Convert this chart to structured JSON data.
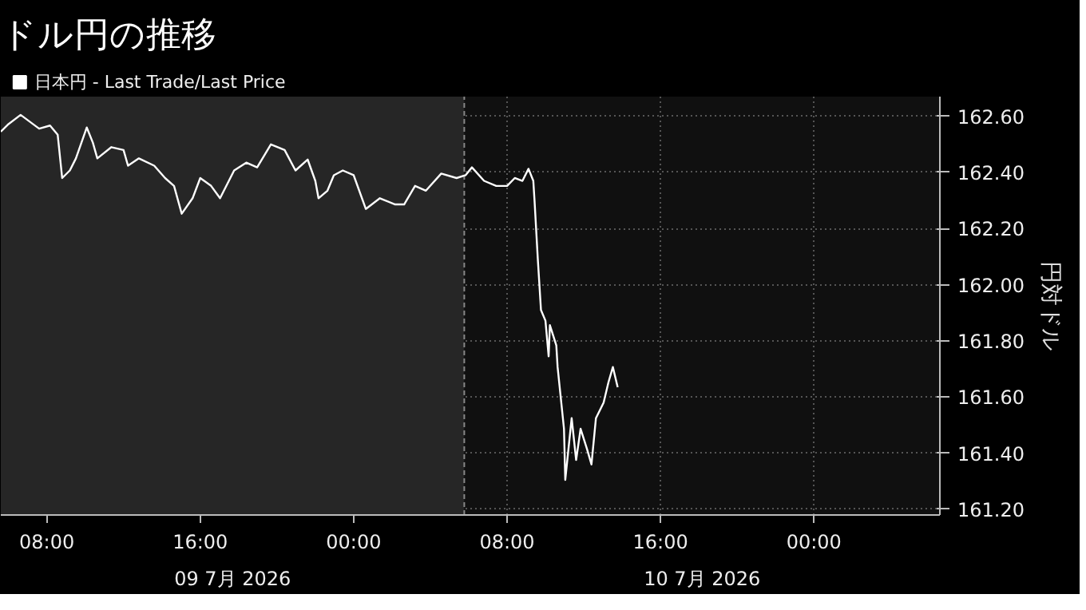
{
  "chart_data": {
    "type": "line",
    "title": "ドル円の推移",
    "ylabel": "円対ドル",
    "legend": "top left",
    "grid": true,
    "line_style": "solid",
    "marker": "none",
    "xlim": [
      "2026-07-09T05:36",
      "2026-07-11T06:34"
    ],
    "xticks": [
      {
        "value": "2026-07-09T08:00",
        "label": "08:00"
      },
      {
        "value": "2026-07-09T16:00",
        "label": "16:00"
      },
      {
        "value": "2026-07-10T00:00",
        "label": "00:00"
      },
      {
        "value": "2026-07-10T08:00",
        "label": "08:00"
      },
      {
        "value": "2026-07-10T16:00",
        "label": "16:00"
      },
      {
        "value": "2026-07-11T00:00",
        "label": "00:00"
      }
    ],
    "ylim": [
      161.18,
      162.67
    ],
    "yticks": [
      {
        "value": 161.2,
        "label": "161.20"
      },
      {
        "value": 161.4,
        "label": "161.40"
      },
      {
        "value": 161.6,
        "label": "161.60"
      },
      {
        "value": 161.8,
        "label": "161.80"
      },
      {
        "value": 162.0,
        "label": "162.00"
      },
      {
        "value": 162.2,
        "label": "162.20"
      },
      {
        "value": 162.4,
        "label": "162.40"
      },
      {
        "value": 162.6,
        "label": "162.60"
      }
    ],
    "bands": [
      {
        "axis": "x",
        "from": "2026-07-09T05:36",
        "to": "2026-07-10T05:46",
        "color": "#262626"
      }
    ],
    "ref_lines": [
      {
        "axis": "x",
        "value": "2026-07-10T05:46",
        "color": "#888888",
        "line_style": "dashed"
      }
    ],
    "annotations": [
      "09 7月 2026",
      "10 7月 2026"
    ],
    "series": [
      {
        "name": "日本円 - Last Trade/Last Price",
        "color": "#ffffff",
        "x": [
          "2026-07-09T05:36",
          "2026-07-09T06:00",
          "2026-07-09T06:38",
          "2026-07-09T07:36",
          "2026-07-09T08:10",
          "2026-07-09T08:34",
          "2026-07-09T08:48",
          "2026-07-09T09:12",
          "2026-07-09T09:31",
          "2026-07-09T10:05",
          "2026-07-09T10:24",
          "2026-07-09T10:38",
          "2026-07-09T11:22",
          "2026-07-09T12:00",
          "2026-07-09T12:14",
          "2026-07-09T12:48",
          "2026-07-09T13:36",
          "2026-07-09T14:10",
          "2026-07-09T14:38",
          "2026-07-09T15:02",
          "2026-07-09T15:36",
          "2026-07-09T16:00",
          "2026-07-09T16:34",
          "2026-07-09T17:02",
          "2026-07-09T17:46",
          "2026-07-09T18:24",
          "2026-07-09T18:58",
          "2026-07-09T19:41",
          "2026-07-09T20:24",
          "2026-07-09T20:58",
          "2026-07-09T21:36",
          "2026-07-09T22:00",
          "2026-07-09T22:10",
          "2026-07-09T22:38",
          "2026-07-09T22:58",
          "2026-07-09T23:26",
          "2026-07-10T00:00",
          "2026-07-10T00:38",
          "2026-07-10T01:22",
          "2026-07-10T02:10",
          "2026-07-10T02:38",
          "2026-07-10T03:12",
          "2026-07-10T03:46",
          "2026-07-10T04:34",
          "2026-07-10T05:22",
          "2026-07-10T05:50",
          "2026-07-10T06:10",
          "2026-07-10T06:48",
          "2026-07-10T07:26",
          "2026-07-10T08:00",
          "2026-07-10T08:24",
          "2026-07-10T08:48",
          "2026-07-10T09:07",
          "2026-07-10T09:22",
          "2026-07-10T09:26",
          "2026-07-10T09:36",
          "2026-07-10T09:46",
          "2026-07-10T10:00",
          "2026-07-10T10:10",
          "2026-07-10T10:14",
          "2026-07-10T10:34",
          "2026-07-10T10:38",
          "2026-07-10T10:58",
          "2026-07-10T11:02",
          "2026-07-10T11:22",
          "2026-07-10T11:36",
          "2026-07-10T11:50",
          "2026-07-10T12:10",
          "2026-07-10T12:24",
          "2026-07-10T12:38",
          "2026-07-10T13:02",
          "2026-07-10T13:17",
          "2026-07-10T13:31",
          "2026-07-10T13:46"
        ],
        "values": [
          162.545,
          162.572,
          162.605,
          162.556,
          162.567,
          162.534,
          162.38,
          162.407,
          162.45,
          162.56,
          162.506,
          162.45,
          162.49,
          162.48,
          162.424,
          162.45,
          162.424,
          162.38,
          162.352,
          162.253,
          162.308,
          162.38,
          162.352,
          162.308,
          162.407,
          162.435,
          162.418,
          162.5,
          162.48,
          162.407,
          162.446,
          162.37,
          162.308,
          162.335,
          162.39,
          162.407,
          162.39,
          162.27,
          162.308,
          162.286,
          162.286,
          162.352,
          162.335,
          162.396,
          162.38,
          162.39,
          162.418,
          162.37,
          162.352,
          162.352,
          162.38,
          162.37,
          162.413,
          162.37,
          162.297,
          162.093,
          161.91,
          161.872,
          161.745,
          161.856,
          161.784,
          161.707,
          161.487,
          161.305,
          161.525,
          161.376,
          161.487,
          161.415,
          161.36,
          161.525,
          161.58,
          161.652,
          161.707,
          161.635
        ]
      }
    ]
  }
}
